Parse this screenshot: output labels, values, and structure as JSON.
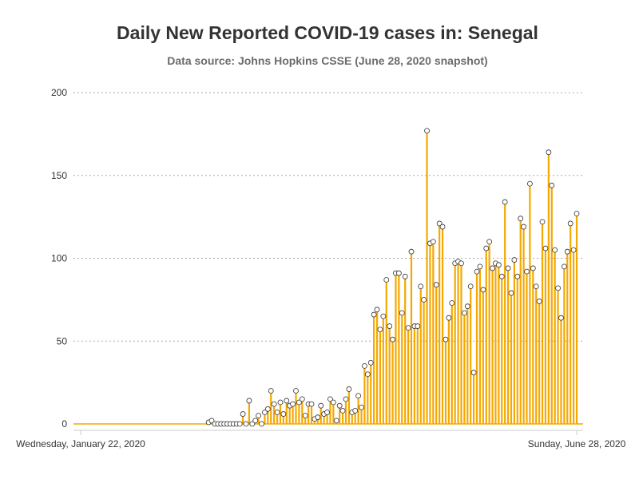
{
  "chart_data": {
    "type": "bar",
    "title": "Daily New Reported COVID-19 cases in: Senegal",
    "subtitle": "Data source: Johns Hopkins CSSE (June 28, 2020 snapshot)",
    "xlabel": "",
    "ylabel": "",
    "x_start": "2020-01-22",
    "x_end": "2020-06-28",
    "x_tick_labels": [
      "Wednesday, January 22, 2020",
      "Sunday, June 28, 2020"
    ],
    "y_ticks": [
      0,
      50,
      100,
      150,
      200
    ],
    "ylim": [
      0,
      200
    ],
    "grid": true,
    "values": [
      0,
      0,
      0,
      0,
      0,
      0,
      0,
      0,
      0,
      0,
      0,
      0,
      0,
      0,
      0,
      0,
      0,
      0,
      0,
      0,
      0,
      0,
      0,
      0,
      0,
      0,
      0,
      0,
      0,
      0,
      0,
      0,
      0,
      0,
      0,
      0,
      0,
      0,
      0,
      0,
      0,
      1,
      2,
      0,
      0,
      0,
      0,
      0,
      0,
      0,
      0,
      0,
      6,
      0,
      14,
      0,
      2,
      5,
      0,
      7,
      9,
      20,
      12,
      7,
      13,
      6,
      14,
      11,
      12,
      20,
      13,
      15,
      5,
      12,
      12,
      3,
      4,
      11,
      6,
      7,
      15,
      13,
      2,
      11,
      8,
      15,
      21,
      7,
      8,
      17,
      10,
      35,
      30,
      37,
      66,
      69,
      57,
      65,
      87,
      59,
      51,
      91,
      91,
      67,
      89,
      58,
      104,
      59,
      59,
      83,
      75,
      177,
      109,
      110,
      84,
      121,
      119,
      51,
      64,
      73,
      97,
      98,
      97,
      67,
      71,
      83,
      31,
      92,
      95,
      81,
      106,
      110,
      94,
      97,
      96,
      89,
      134,
      94,
      79,
      99,
      89,
      124,
      119,
      92,
      145,
      94,
      83,
      74,
      122,
      106,
      164,
      144,
      105,
      82,
      64,
      95,
      104,
      121,
      105,
      127
    ],
    "bar_color": "#f5a800",
    "marker_fill": "#ffffff",
    "marker_stroke": "#333333",
    "grid_color": "#aaaaaa",
    "axis_color": "#cccccc"
  }
}
